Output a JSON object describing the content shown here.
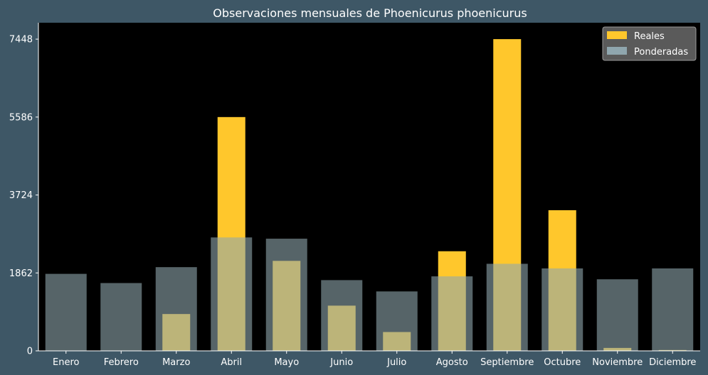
{
  "chart_data": {
    "type": "bar",
    "title": "Observaciones mensuales de Phoenicurus phoenicurus",
    "xlabel": "",
    "ylabel": "",
    "categories": [
      "Enero",
      "Febrero",
      "Marzo",
      "Abril",
      "Mayo",
      "Junio",
      "Julio",
      "Agosto",
      "Septiembre",
      "Octubre",
      "Noviembre",
      "Diciembre"
    ],
    "series": [
      {
        "name": "Reales",
        "color": "#ffc72c",
        "values": [
          0,
          0,
          880,
          5586,
          2150,
          1080,
          450,
          2380,
          7448,
          3360,
          70,
          20
        ]
      },
      {
        "name": "Ponderadas",
        "color": "#8fa6ae",
        "values": [
          1840,
          1620,
          2000,
          2710,
          2680,
          1690,
          1420,
          1780,
          2080,
          1970,
          1710,
          1970
        ]
      }
    ],
    "yticks": [
      "0",
      "1862",
      "3724",
      "5586",
      "7448"
    ],
    "ylim": [
      0,
      7840
    ],
    "legend": "top-right",
    "grid": false,
    "background": "#3e5766",
    "plot_background": "#000000"
  }
}
